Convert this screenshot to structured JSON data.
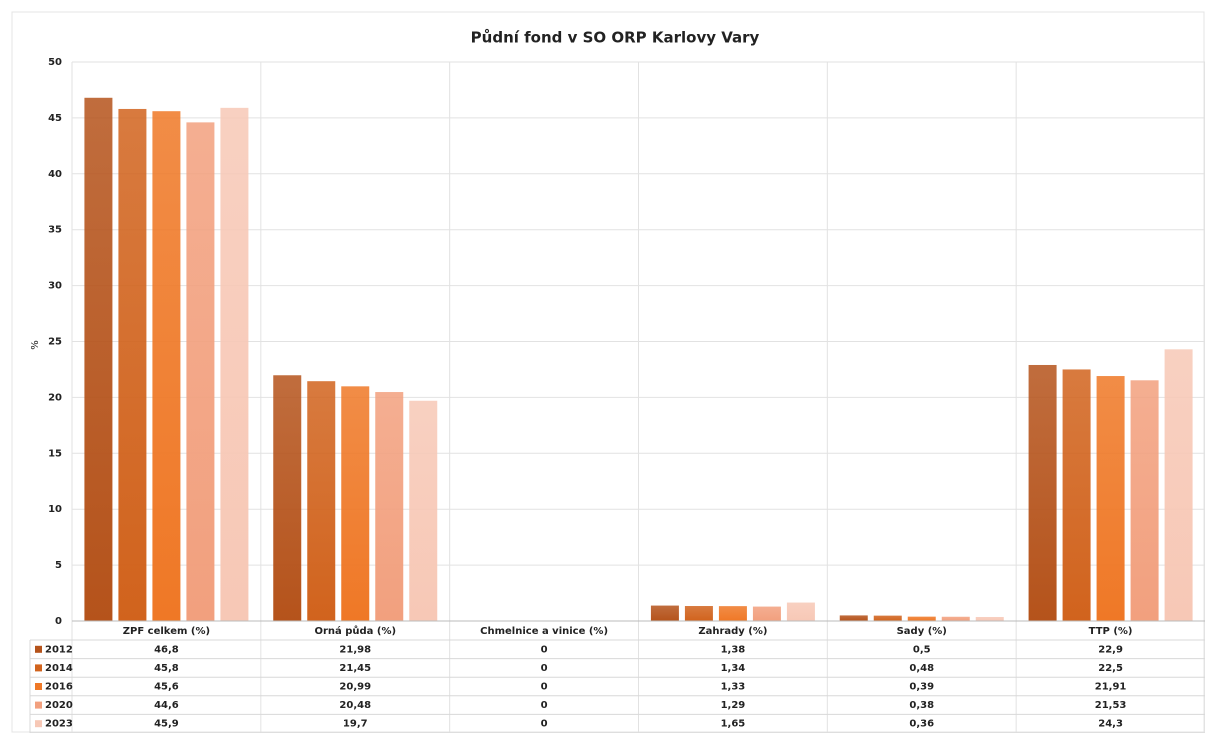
{
  "chart_data": {
    "type": "bar",
    "title": "Půdní fond v SO ORP Karlovy Vary",
    "ylabel": "%",
    "categories": [
      "ZPF celkem (%)",
      "Orná půda (%)",
      "Chmelnice a vinice (%)",
      "Zahrady (%)",
      "Sady (%)",
      "TTP (%)"
    ],
    "series": [
      {
        "name": "2012",
        "color": "#b5531b",
        "values": [
          46.8,
          21.98,
          0,
          1.38,
          0.5,
          22.9
        ],
        "value_labels": [
          "46,8",
          "21,98",
          "0",
          "1,38",
          "0,5",
          "22,9"
        ]
      },
      {
        "name": "2014",
        "color": "#d1631d",
        "values": [
          45.8,
          21.45,
          0,
          1.34,
          0.48,
          22.5
        ],
        "value_labels": [
          "45,8",
          "21,45",
          "0",
          "1,34",
          "0,48",
          "22,5"
        ]
      },
      {
        "name": "2016",
        "color": "#ef7826",
        "values": [
          45.6,
          20.99,
          0,
          1.33,
          0.39,
          21.91
        ],
        "value_labels": [
          "45,6",
          "20,99",
          "0",
          "1,33",
          "0,39",
          "21,91"
        ]
      },
      {
        "name": "2020",
        "color": "#f2a07e",
        "values": [
          44.6,
          20.48,
          0,
          1.29,
          0.38,
          21.53
        ],
        "value_labels": [
          "44,6",
          "20,48",
          "0",
          "1,29",
          "0,38",
          "21,53"
        ]
      },
      {
        "name": "2023",
        "color": "#f7c8b6",
        "values": [
          45.9,
          19.7,
          0,
          1.65,
          0.36,
          24.3
        ],
        "value_labels": [
          "45,9",
          "19,7",
          "0",
          "1,65",
          "0,36",
          "24,3"
        ]
      }
    ],
    "ylim": [
      0,
      50
    ],
    "yticks": [
      0,
      5,
      10,
      15,
      20,
      25,
      30,
      35,
      40,
      45,
      50
    ],
    "grid": true
  }
}
